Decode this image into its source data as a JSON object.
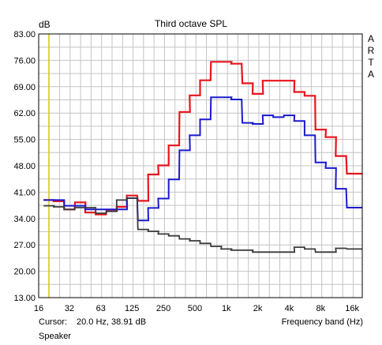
{
  "chart_data": {
    "type": "line",
    "title": "Third octave SPL",
    "ylabel": "dB",
    "xlabel": "Frequency band (Hz)",
    "ylim": [
      13.0,
      83.0
    ],
    "y_ticks": [
      "13.00",
      "20.00",
      "27.00",
      "34.00",
      "41.00",
      "48.00",
      "55.00",
      "62.00",
      "69.00",
      "76.00",
      "83.00"
    ],
    "x_scale": "log",
    "xlim": [
      16,
      20000
    ],
    "x_ticks": [
      {
        "value": 16,
        "label": "16"
      },
      {
        "value": 31.5,
        "label": "32"
      },
      {
        "value": 63,
        "label": "63"
      },
      {
        "value": 125,
        "label": "125"
      },
      {
        "value": 250,
        "label": "250"
      },
      {
        "value": 500,
        "label": "500"
      },
      {
        "value": 1000,
        "label": "1k"
      },
      {
        "value": 2000,
        "label": "2k"
      },
      {
        "value": 4000,
        "label": "4k"
      },
      {
        "value": 8000,
        "label": "8k"
      },
      {
        "value": 16000,
        "label": "16k"
      }
    ],
    "grid": true,
    "cursor_x": 20,
    "bands": [
      20,
      25,
      31.5,
      40,
      50,
      63,
      80,
      100,
      125,
      160,
      200,
      250,
      315,
      400,
      500,
      630,
      800,
      1000,
      1250,
      1600,
      2000,
      2500,
      3150,
      4000,
      5000,
      6300,
      8000,
      10000,
      12500,
      16000,
      20000
    ],
    "series": [
      {
        "color": "#e8141c",
        "values": [
          38.9,
          38.6,
          36.4,
          38.3,
          35.6,
          35.1,
          36.3,
          37.1,
          40.1,
          38.7,
          45.7,
          48.1,
          53.4,
          62.3,
          66.7,
          70.7,
          75.6,
          75.6,
          75.1,
          69.9,
          67.1,
          70.6,
          70.6,
          70.6,
          67.6,
          66.6,
          57.6,
          55.6,
          50.6,
          45.9,
          45.9
        ]
      },
      {
        "color": "#1a1ad0",
        "values": [
          38.9,
          38.9,
          37.4,
          37.4,
          36.4,
          36.4,
          36.4,
          36.4,
          39.4,
          33.5,
          36.8,
          39.3,
          44.4,
          52.1,
          56.1,
          60.3,
          66.2,
          66.2,
          65.6,
          59.4,
          59.1,
          61.4,
          60.9,
          61.4,
          59.9,
          56.1,
          48.9,
          47.4,
          41.9,
          36.9,
          36.9
        ]
      },
      {
        "color": "#3a3a3a",
        "values": [
          37.4,
          37.1,
          36.4,
          36.9,
          36.9,
          35.4,
          35.9,
          38.9,
          39.4,
          31.1,
          30.6,
          29.9,
          29.4,
          28.6,
          28.1,
          27.4,
          26.6,
          25.9,
          25.6,
          25.6,
          25.1,
          25.1,
          25.1,
          25.1,
          26.4,
          25.9,
          25.1,
          25.1,
          26.1,
          25.9,
          25.9
        ]
      }
    ]
  },
  "side_text": [
    "A",
    "R",
    "T",
    "A"
  ],
  "cursor": {
    "label": "Cursor:",
    "readout": "20.0 Hz, 38.91 dB"
  },
  "channel": "Speaker",
  "colors": {
    "grid": "#c4c4c4",
    "frame": "#000000",
    "cursor": "#d8c80a"
  }
}
